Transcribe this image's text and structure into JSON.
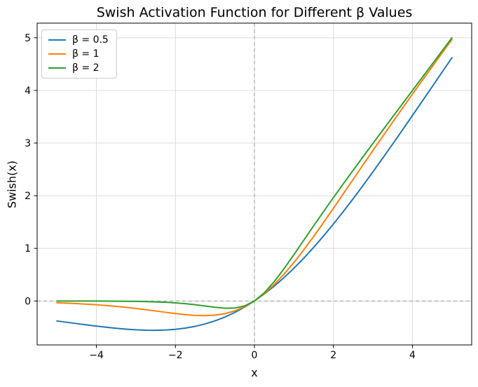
{
  "chart_data": {
    "type": "line",
    "title": "Swish Activation Function for Different β Values",
    "xlabel": "x",
    "ylabel": "Swish(x)",
    "xlim": [
      -5.5,
      5.5
    ],
    "ylim": [
      -0.8346,
      5.2776
    ],
    "xticks": [
      -4,
      -2,
      0,
      2,
      4
    ],
    "yticks": [
      0,
      1,
      2,
      3,
      4,
      5
    ],
    "grid": true,
    "grid_color": "#dcdcdc",
    "legend_position": "upper-left",
    "reference_lines": {
      "x": 0,
      "y": 0,
      "style": "dashed",
      "color": "#9a9a9a"
    },
    "axis_color": "#000000",
    "background_color": "#ffffff",
    "x": [
      -5,
      -4.75,
      -4.5,
      -4.25,
      -4,
      -3.75,
      -3.5,
      -3.25,
      -3,
      -2.75,
      -2.5,
      -2.25,
      -2,
      -1.75,
      -1.5,
      -1.25,
      -1,
      -0.75,
      -0.5,
      -0.25,
      0,
      0.25,
      0.5,
      0.75,
      1,
      1.25,
      1.5,
      1.75,
      2,
      2.25,
      2.5,
      2.75,
      3,
      3.25,
      3.5,
      3.75,
      4,
      4.25,
      4.5,
      4.75,
      5
    ],
    "series": [
      {
        "name": "β = 0.5",
        "beta": 0.5,
        "color": "#1f77b4",
        "values": [
          -0.3795,
          -0.4042,
          -0.4293,
          -0.4535,
          -0.4768,
          -0.4988,
          -0.518,
          -0.5346,
          -0.5472,
          -0.555,
          -0.5568,
          -0.5515,
          -0.5378,
          -0.5149,
          -0.4812,
          -0.4358,
          -0.3775,
          -0.3055,
          -0.2189,
          -0.1172,
          0,
          0.1328,
          0.2811,
          0.4445,
          0.6225,
          0.8143,
          1.0188,
          1.2352,
          1.4622,
          1.6985,
          1.9433,
          2.1951,
          2.4528,
          2.7154,
          2.982,
          3.2513,
          3.5232,
          3.7965,
          4.0707,
          4.3458,
          4.6205
        ]
      },
      {
        "name": "β = 1",
        "beta": 1,
        "color": "#ff7f0e",
        "values": [
          -0.0335,
          -0.0409,
          -0.0495,
          -0.0599,
          -0.0719,
          -0.0862,
          -0.1026,
          -0.1212,
          -0.1423,
          -0.1652,
          -0.1897,
          -0.2146,
          -0.2384,
          -0.259,
          -0.2736,
          -0.2784,
          -0.2689,
          -0.2406,
          -0.1888,
          -0.1094,
          0,
          0.1406,
          0.3112,
          0.5094,
          0.7311,
          0.9716,
          1.2264,
          1.491,
          1.7616,
          2.0354,
          2.3103,
          2.5847,
          2.8578,
          3.1288,
          3.3975,
          3.6638,
          3.928,
          4.1901,
          4.4505,
          4.7092,
          4.9665
        ]
      },
      {
        "name": "β = 2",
        "beta": 2,
        "color": "#2ca02c",
        "values": [
          -0.0002,
          -0.0004,
          -0.0006,
          -0.0009,
          -0.0013,
          -0.0021,
          -0.0032,
          -0.0049,
          -0.0074,
          -0.0112,
          -0.0167,
          -0.0247,
          -0.0359,
          -0.0513,
          -0.0711,
          -0.0949,
          -0.1192,
          -0.1368,
          -0.1345,
          -0.0944,
          0,
          0.1556,
          0.3656,
          0.6132,
          0.8808,
          1.1551,
          1.4289,
          1.6987,
          1.964,
          2.2253,
          2.4833,
          2.7388,
          2.9926,
          3.2451,
          3.4968,
          3.748,
          3.9986,
          4.2492,
          4.4995,
          4.7497,
          4.9998
        ]
      }
    ]
  }
}
